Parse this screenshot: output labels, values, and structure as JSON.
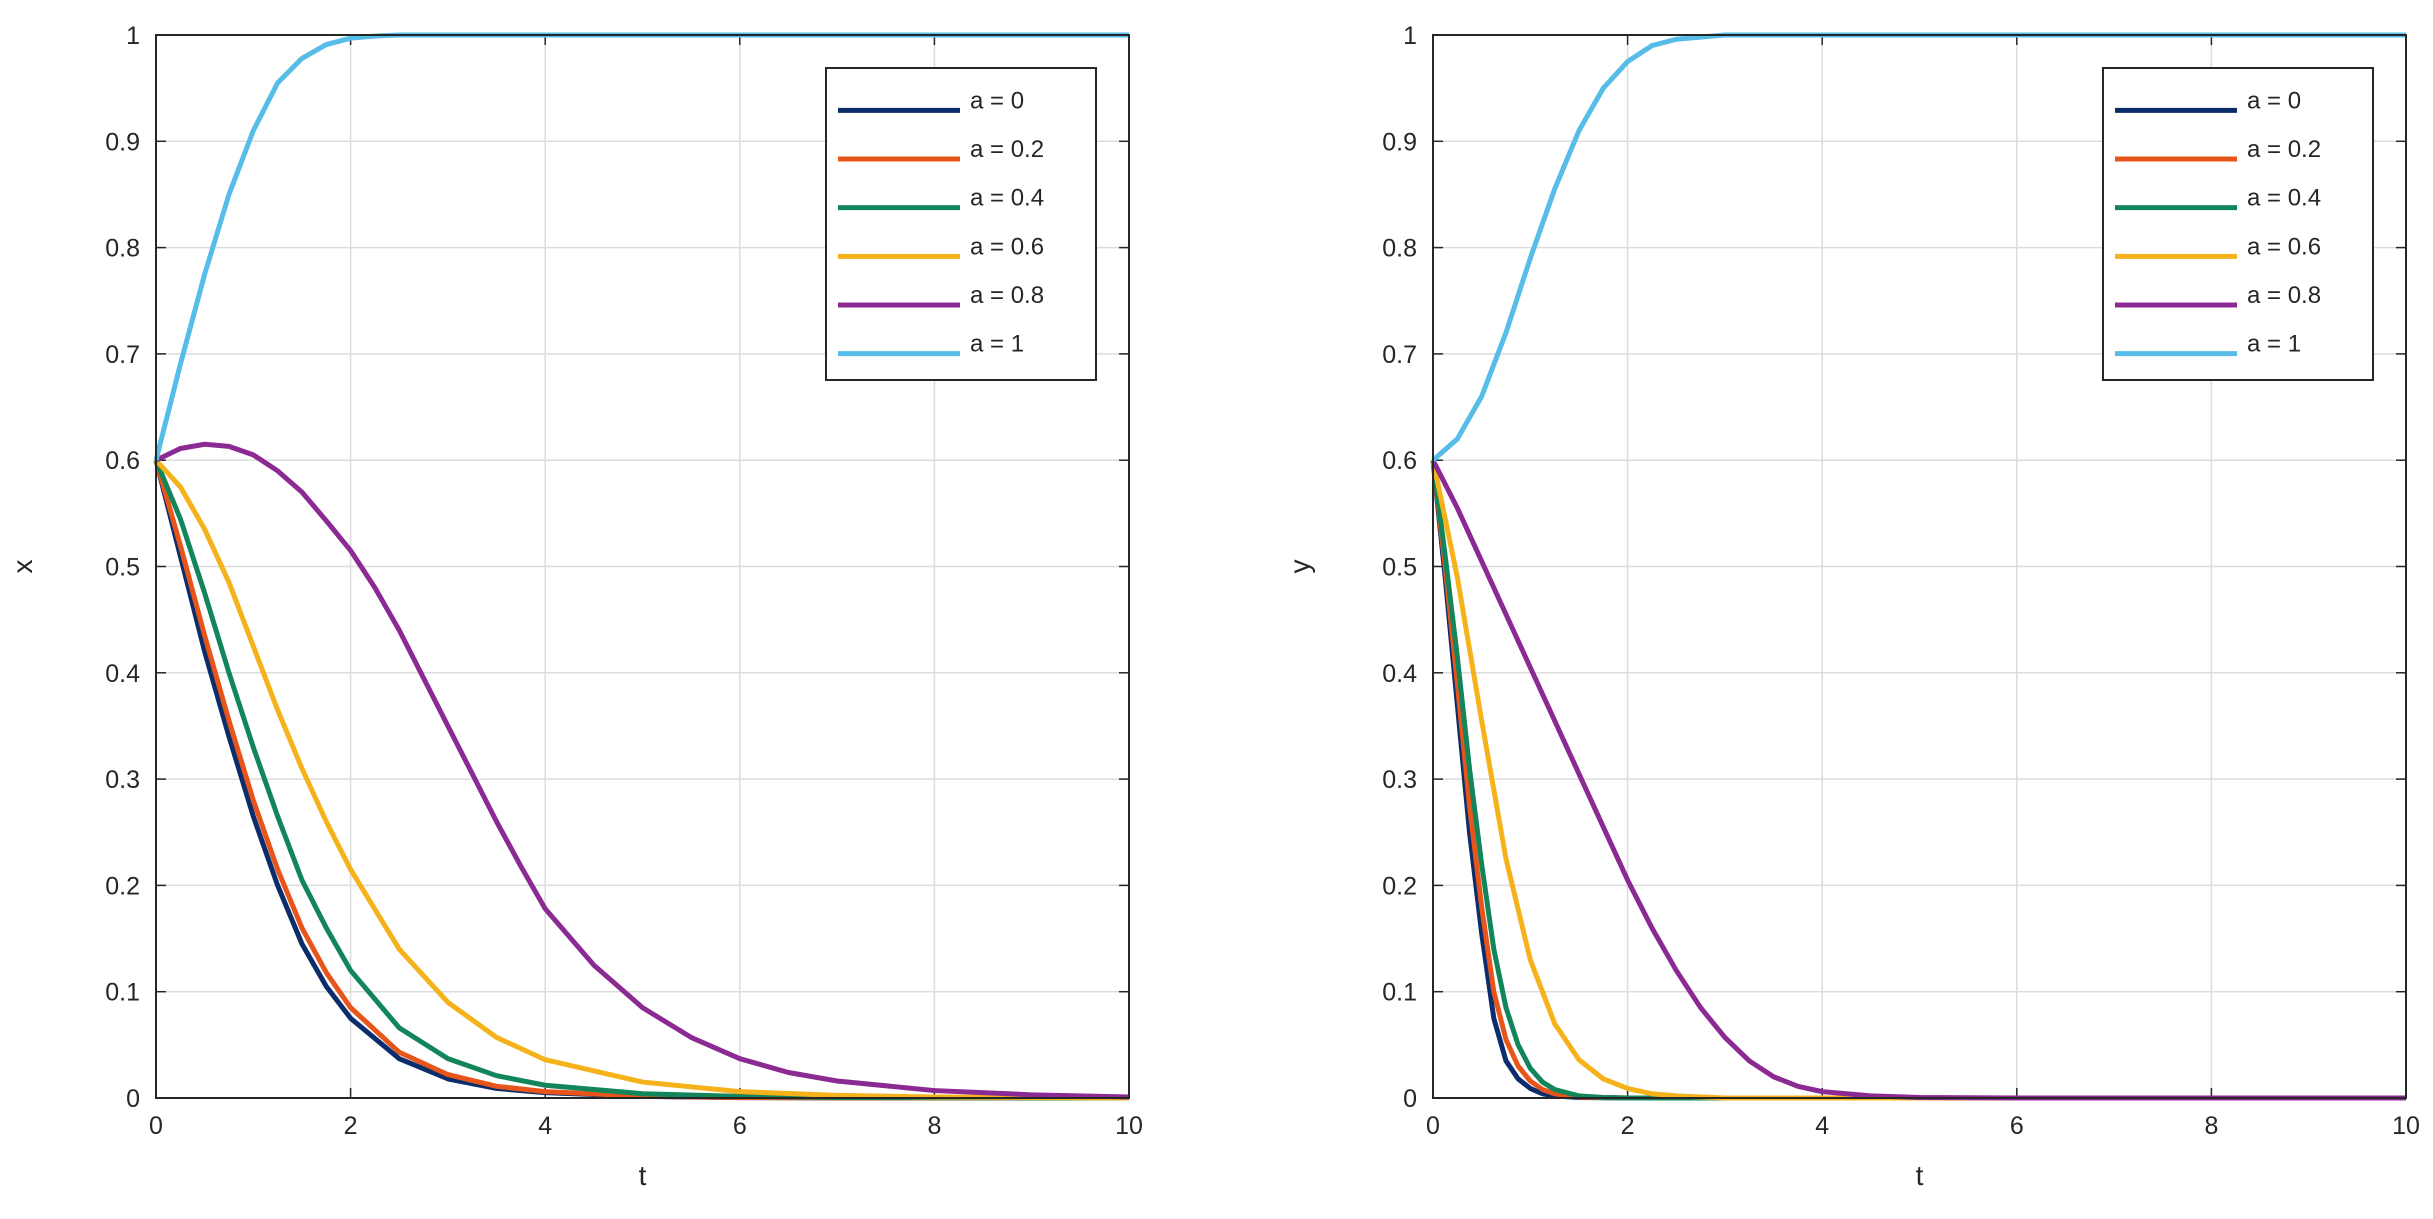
{
  "chart_data": [
    {
      "type": "line",
      "title": "",
      "xlabel": "t",
      "ylabel": "x",
      "xlim": [
        0,
        10
      ],
      "ylim": [
        0,
        1
      ],
      "xticks": [
        "0",
        "2",
        "4",
        "6",
        "8",
        "10"
      ],
      "yticks": [
        "0",
        "0.1",
        "0.2",
        "0.3",
        "0.4",
        "0.5",
        "0.6",
        "0.7",
        "0.8",
        "0.9",
        "1"
      ],
      "grid": true,
      "legend_position": "top-right",
      "series": [
        {
          "name": "a = 0",
          "color": "#0c2d6b",
          "x": [
            0,
            0.25,
            0.5,
            0.75,
            1,
            1.25,
            1.5,
            1.75,
            2,
            2.5,
            3,
            3.5,
            4,
            5,
            6,
            7,
            8,
            10
          ],
          "y": [
            0.6,
            0.51,
            0.42,
            0.34,
            0.265,
            0.2,
            0.145,
            0.105,
            0.075,
            0.037,
            0.018,
            0.009,
            0.005,
            0.0015,
            0.0004,
            0.0001,
            0,
            0
          ]
        },
        {
          "name": "a = 0.2",
          "color": "#e8551a",
          "x": [
            0,
            0.25,
            0.5,
            0.75,
            1,
            1.25,
            1.5,
            1.75,
            2,
            2.5,
            3,
            3.5,
            4,
            5,
            6,
            7,
            8,
            10
          ],
          "y": [
            0.6,
            0.52,
            0.435,
            0.355,
            0.28,
            0.215,
            0.16,
            0.118,
            0.085,
            0.043,
            0.022,
            0.011,
            0.006,
            0.0017,
            0.0005,
            0.0001,
            0,
            0
          ]
        },
        {
          "name": "a = 0.4",
          "color": "#12855a",
          "x": [
            0,
            0.25,
            0.5,
            0.75,
            1,
            1.25,
            1.5,
            1.75,
            2,
            2.5,
            3,
            3.5,
            4,
            5,
            6,
            7,
            8,
            10
          ],
          "y": [
            0.6,
            0.545,
            0.475,
            0.4,
            0.33,
            0.265,
            0.205,
            0.16,
            0.12,
            0.066,
            0.037,
            0.021,
            0.012,
            0.004,
            0.0015,
            0.0005,
            0.0002,
            0
          ]
        },
        {
          "name": "a = 0.6",
          "color": "#f5b21a",
          "x": [
            0,
            0.25,
            0.5,
            0.75,
            1,
            1.25,
            1.5,
            1.75,
            2,
            2.5,
            3,
            3.5,
            4,
            5,
            6,
            7,
            8,
            10
          ],
          "y": [
            0.6,
            0.575,
            0.535,
            0.485,
            0.425,
            0.365,
            0.31,
            0.26,
            0.215,
            0.14,
            0.09,
            0.057,
            0.036,
            0.015,
            0.006,
            0.0025,
            0.001,
            0
          ]
        },
        {
          "name": "a = 0.8",
          "color": "#8c2a94",
          "x": [
            0,
            0.25,
            0.5,
            0.75,
            1,
            1.25,
            1.5,
            1.75,
            2,
            2.25,
            2.5,
            2.75,
            3,
            3.25,
            3.5,
            3.75,
            4,
            4.5,
            5,
            5.5,
            6,
            6.5,
            7,
            8,
            9,
            10
          ],
          "y": [
            0.6,
            0.611,
            0.615,
            0.613,
            0.605,
            0.59,
            0.57,
            0.543,
            0.515,
            0.48,
            0.44,
            0.395,
            0.35,
            0.305,
            0.26,
            0.218,
            0.178,
            0.125,
            0.085,
            0.057,
            0.037,
            0.024,
            0.016,
            0.007,
            0.003,
            0.001
          ]
        },
        {
          "name": "a = 1",
          "color": "#55bde8",
          "x": [
            0,
            0.25,
            0.5,
            0.75,
            1,
            1.25,
            1.5,
            1.75,
            2,
            2.25,
            2.5,
            3,
            4,
            5,
            6,
            8,
            10
          ],
          "y": [
            0.6,
            0.69,
            0.775,
            0.85,
            0.91,
            0.955,
            0.978,
            0.991,
            0.997,
            0.999,
            1,
            1,
            1,
            1,
            1,
            1,
            1
          ]
        }
      ]
    },
    {
      "type": "line",
      "title": "",
      "xlabel": "t",
      "ylabel": "y",
      "xlim": [
        0,
        10
      ],
      "ylim": [
        0,
        1
      ],
      "xticks": [
        "0",
        "2",
        "4",
        "6",
        "8",
        "10"
      ],
      "yticks": [
        "0",
        "0.1",
        "0.2",
        "0.3",
        "0.4",
        "0.5",
        "0.6",
        "0.7",
        "0.8",
        "0.9",
        "1"
      ],
      "grid": true,
      "legend_position": "top-right",
      "series": [
        {
          "name": "a = 0",
          "color": "#0c2d6b",
          "x": [
            0,
            0.125,
            0.25,
            0.375,
            0.5,
            0.625,
            0.75,
            0.875,
            1,
            1.125,
            1.25,
            1.5,
            2,
            10
          ],
          "y": [
            0.6,
            0.49,
            0.37,
            0.25,
            0.155,
            0.075,
            0.035,
            0.018,
            0.009,
            0.004,
            0.002,
            0.0005,
            0,
            0
          ]
        },
        {
          "name": "a = 0.2",
          "color": "#e8551a",
          "x": [
            0,
            0.125,
            0.25,
            0.375,
            0.5,
            0.625,
            0.75,
            0.875,
            1,
            1.125,
            1.25,
            1.5,
            2,
            10
          ],
          "y": [
            0.6,
            0.5,
            0.39,
            0.275,
            0.18,
            0.1,
            0.055,
            0.03,
            0.016,
            0.008,
            0.004,
            0.001,
            0,
            0
          ]
        },
        {
          "name": "a = 0.4",
          "color": "#12855a",
          "x": [
            0,
            0.125,
            0.25,
            0.375,
            0.5,
            0.625,
            0.75,
            0.875,
            1,
            1.125,
            1.25,
            1.5,
            1.75,
            2,
            10
          ],
          "y": [
            0.6,
            0.51,
            0.415,
            0.31,
            0.22,
            0.14,
            0.085,
            0.05,
            0.028,
            0.015,
            0.008,
            0.002,
            0.0005,
            0,
            0
          ]
        },
        {
          "name": "a = 0.6",
          "color": "#f5b21a",
          "x": [
            0,
            0.25,
            0.5,
            0.75,
            1,
            1.25,
            1.5,
            1.75,
            2,
            2.25,
            2.5,
            3,
            10
          ],
          "y": [
            0.6,
            0.49,
            0.355,
            0.225,
            0.13,
            0.07,
            0.036,
            0.018,
            0.009,
            0.004,
            0.002,
            0,
            0
          ]
        },
        {
          "name": "a = 0.8",
          "color": "#8c2a94",
          "x": [
            0,
            0.25,
            0.5,
            0.75,
            1,
            1.25,
            1.5,
            1.75,
            2,
            2.25,
            2.5,
            2.75,
            3,
            3.25,
            3.5,
            3.75,
            4,
            4.5,
            5,
            6,
            10
          ],
          "y": [
            0.6,
            0.555,
            0.505,
            0.455,
            0.405,
            0.355,
            0.305,
            0.255,
            0.205,
            0.16,
            0.12,
            0.085,
            0.057,
            0.035,
            0.02,
            0.011,
            0.006,
            0.002,
            0.0005,
            0,
            0
          ]
        },
        {
          "name": "a = 1",
          "color": "#55bde8",
          "x": [
            0,
            0.25,
            0.5,
            0.75,
            1,
            1.25,
            1.5,
            1.75,
            2,
            2.25,
            2.5,
            3,
            4,
            6,
            10
          ],
          "y": [
            0.6,
            0.62,
            0.66,
            0.72,
            0.79,
            0.855,
            0.91,
            0.95,
            0.975,
            0.99,
            0.996,
            1,
            1,
            1,
            1
          ]
        }
      ]
    }
  ]
}
